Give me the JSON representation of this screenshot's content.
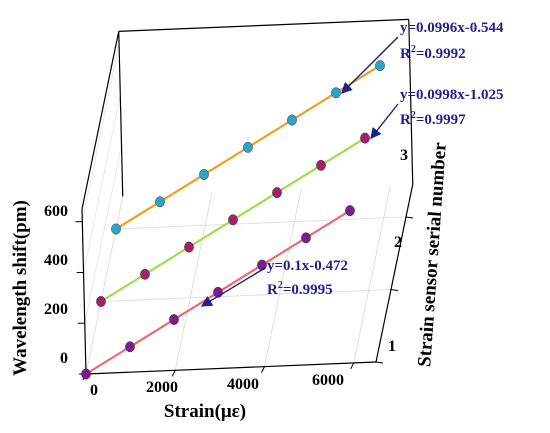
{
  "chart_data": {
    "type": "scatter",
    "projection": "3d",
    "xlabel": "Strain(με)",
    "ylabel": "Strain sensor serial number",
    "zlabel": "Wavelength shift(pm)",
    "x_ticks": [
      "0",
      "2000",
      "4000",
      "6000"
    ],
    "y_ticks": [
      "1",
      "2",
      "3"
    ],
    "z_ticks": [
      "0",
      "200",
      "400",
      "600"
    ],
    "xlim": [
      0,
      6500
    ],
    "ylim": [
      1,
      3
    ],
    "zlim": [
      0,
      650
    ],
    "grid": true,
    "series": [
      {
        "sensor": 1,
        "x": [
          0,
          1000,
          2000,
          3000,
          4000,
          5000,
          6000
        ],
        "y": [
          0,
          100,
          200,
          300,
          400,
          500,
          600
        ],
        "marker_color": "#7a1f8a",
        "line_color": "#ee6a6a",
        "fit": {
          "equation": "y=0.1x-0.472",
          "r2_prefix": "R",
          "r2_exp": "2",
          "r2_value": "=0.9995"
        }
      },
      {
        "sensor": 2,
        "x": [
          0,
          1000,
          2000,
          3000,
          4000,
          5000,
          6000
        ],
        "y": [
          0,
          100,
          200,
          300,
          400,
          500,
          600
        ],
        "marker_color": "#a3206a",
        "line_color": "#9be04a",
        "fit": {
          "equation": "y=0.0998x-1.025",
          "r2_prefix": "R",
          "r2_exp": "2",
          "r2_value": "=0.9997"
        }
      },
      {
        "sensor": 3,
        "x": [
          0,
          1000,
          2000,
          3000,
          4000,
          5000,
          6000
        ],
        "y": [
          0,
          100,
          200,
          300,
          400,
          500,
          600
        ],
        "marker_color": "#2aa6c8",
        "line_color": "#f0a020",
        "fit": {
          "equation": "y=0.0996x-0.544",
          "r2_prefix": "R",
          "r2_exp": "2",
          "r2_value": "=0.9992"
        }
      }
    ],
    "annotation_color": "#1f1f8f"
  }
}
